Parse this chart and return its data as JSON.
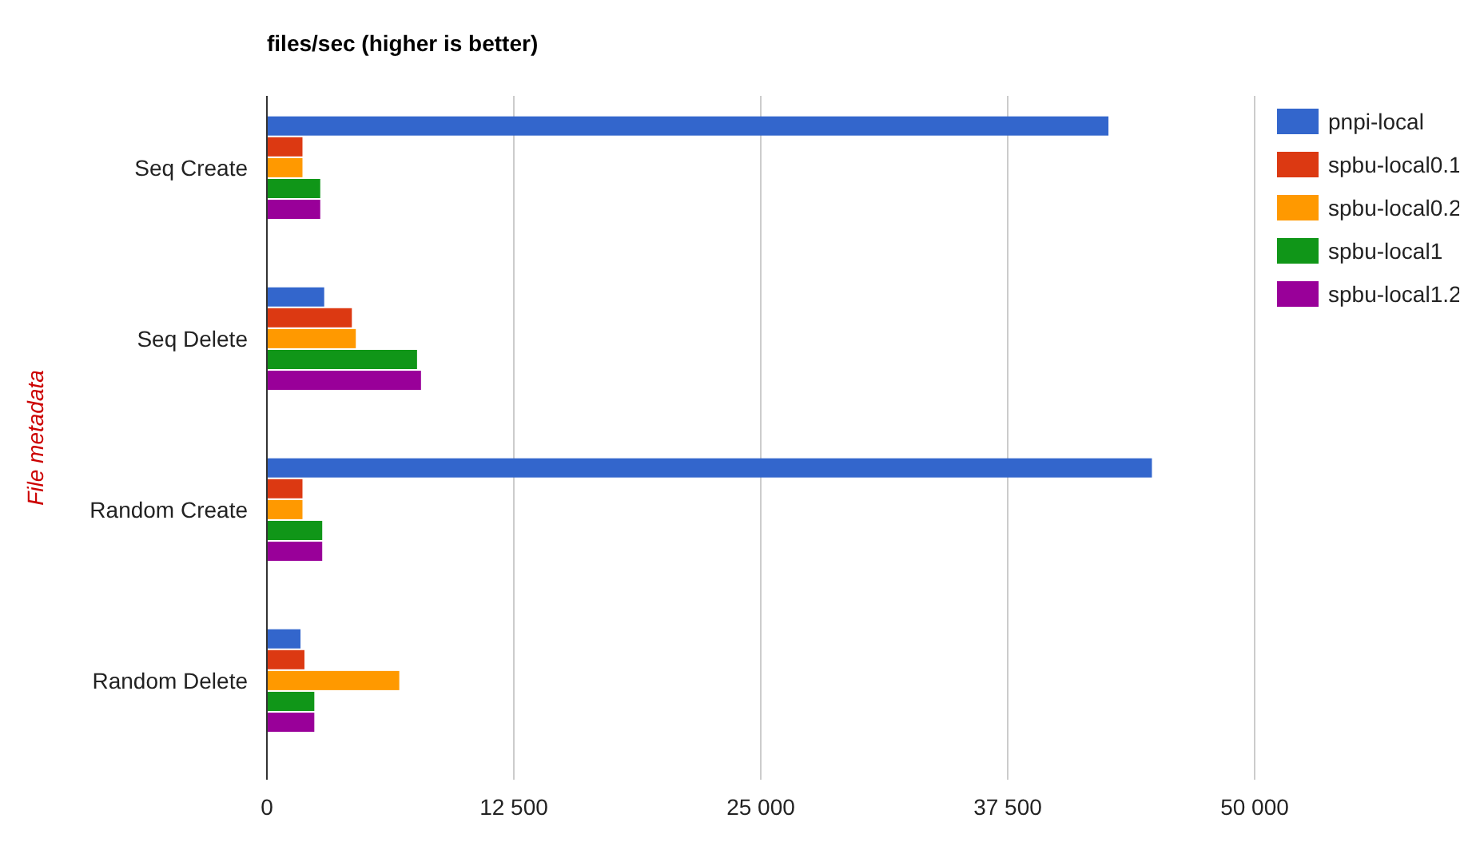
{
  "chart_data": {
    "type": "bar",
    "orientation": "horizontal",
    "title": "files/sec (higher is better)",
    "ylabel": "File metadata",
    "categories": [
      "Seq Create",
      "Seq Delete",
      "Random Create",
      "Random Delete"
    ],
    "series": [
      {
        "name": "pnpi-local",
        "color": "#3366cc",
        "values": [
          42600,
          2900,
          44800,
          1700
        ]
      },
      {
        "name": "spbu-local0.1",
        "color": "#dc3912",
        "values": [
          1800,
          4300,
          1800,
          1900
        ]
      },
      {
        "name": "spbu-local0.2",
        "color": "#ff9900",
        "values": [
          1800,
          4500,
          1800,
          6700
        ]
      },
      {
        "name": "spbu-local1",
        "color": "#109618",
        "values": [
          2700,
          7600,
          2800,
          2400
        ]
      },
      {
        "name": "spbu-local1.2",
        "color": "#990099",
        "values": [
          2700,
          7800,
          2800,
          2400
        ]
      }
    ],
    "xlim": [
      0,
      50000
    ],
    "xticks": [
      0,
      {
        "value": 12500,
        "label": "12 500"
      },
      {
        "value": 25000,
        "label": "25 000"
      },
      {
        "value": 37500,
        "label": "37 500"
      },
      {
        "value": 50000,
        "label": "50 000"
      }
    ],
    "grid": "x",
    "legend": "right"
  }
}
